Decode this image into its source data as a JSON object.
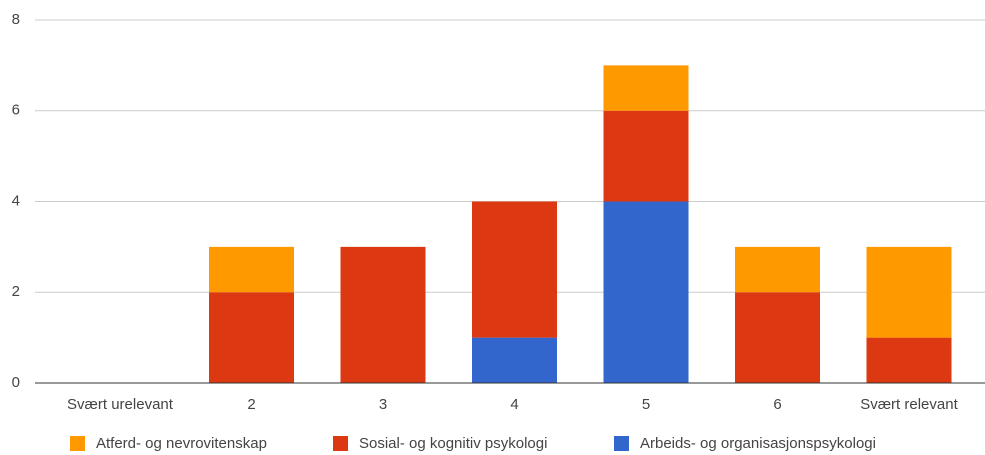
{
  "chart_data": {
    "type": "stacked-bar",
    "categories": [
      "Svært urelevant",
      "2",
      "3",
      "4",
      "5",
      "6",
      "Svært relevant"
    ],
    "series": [
      {
        "name": "Atferd- og nevrovitenskap",
        "color": "#ff9900",
        "values": [
          0,
          1,
          0,
          0,
          1,
          1,
          2
        ]
      },
      {
        "name": "Sosial- og kognitiv psykologi",
        "color": "#dc3912",
        "values": [
          0,
          2,
          3,
          3,
          2,
          2,
          1
        ]
      },
      {
        "name": "Arbeids- og organisasjonspsykologi",
        "color": "#3366cc",
        "values": [
          0,
          0,
          0,
          1,
          4,
          0,
          0
        ]
      }
    ],
    "ylim": [
      0,
      8
    ],
    "yticks": [
      0,
      2,
      4,
      6,
      8
    ],
    "grid": true,
    "legend": "bottom"
  }
}
